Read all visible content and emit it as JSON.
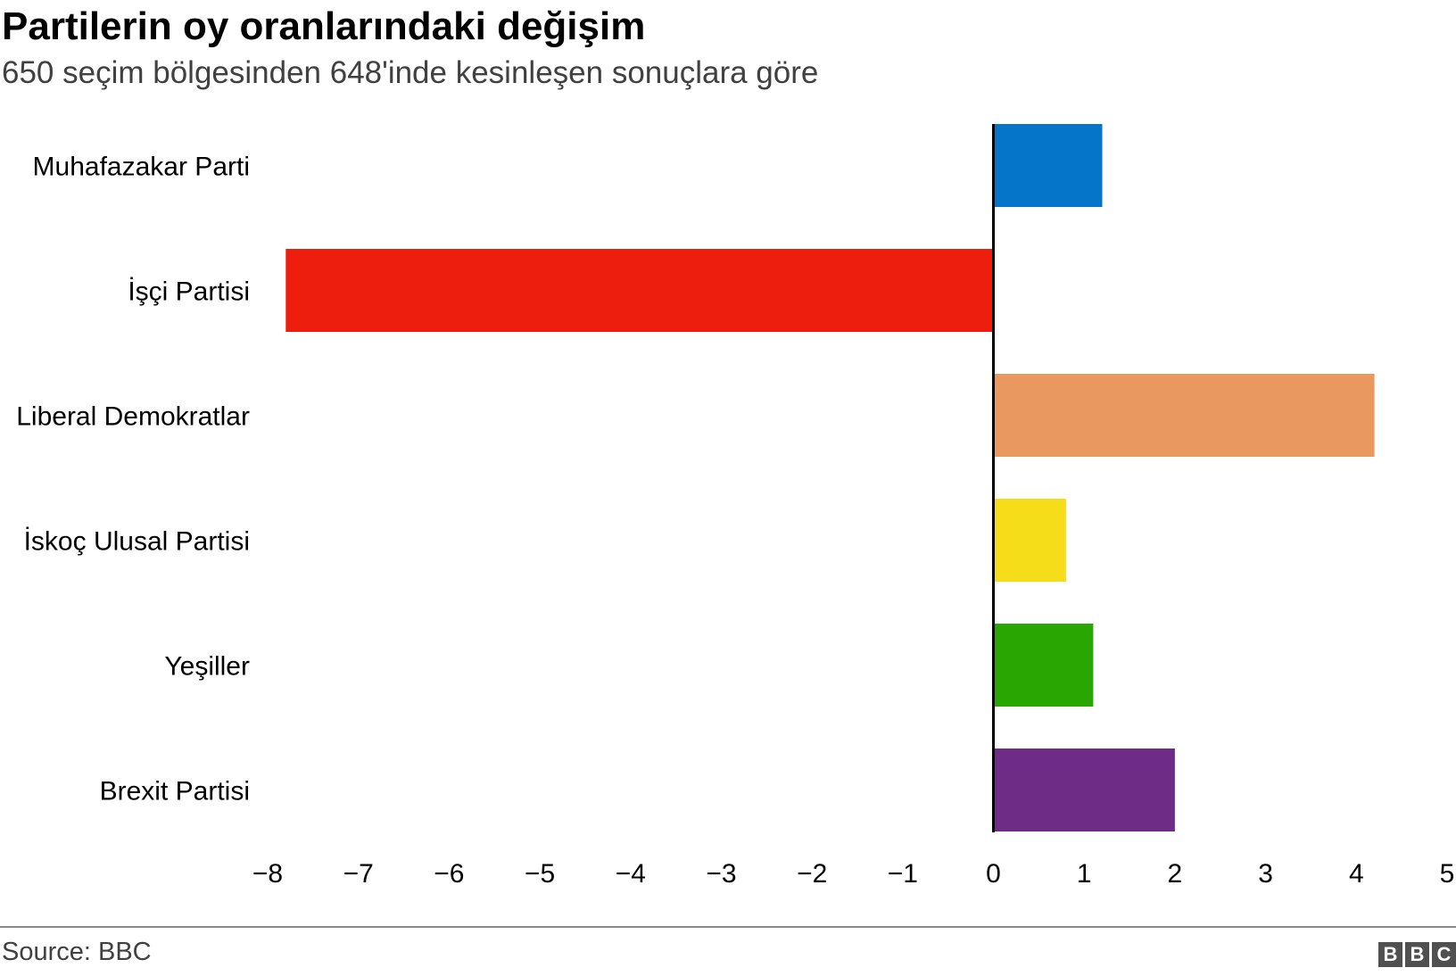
{
  "brand_logo": "BBC",
  "source": "Source: BBC",
  "chart_data": {
    "type": "bar",
    "orientation": "horizontal",
    "title": "Partilerin oy oranlarındaki değişim",
    "subtitle": "650 seçim bölgesinden 648'inde kesinleşen sonuçlara göre",
    "xlabel": "",
    "ylabel": "",
    "xlim": [
      -8,
      5
    ],
    "xticks": [
      -8,
      -7,
      -6,
      -5,
      -4,
      -3,
      -2,
      -1,
      0,
      1,
      2,
      3,
      4,
      5
    ],
    "xtick_labels": [
      "−8",
      "−7",
      "−6",
      "−5",
      "−4",
      "−3",
      "−2",
      "−1",
      "0",
      "1",
      "2",
      "3",
      "4",
      "5"
    ],
    "grid": false,
    "categories": [
      "Muhafazakar Parti",
      "İşçi Partisi",
      "Liberal Demokratlar",
      "İskoç Ulusal Partisi",
      "Yeşiller",
      "Brexit Partisi"
    ],
    "values": [
      1.2,
      -7.8,
      4.2,
      0.8,
      1.1,
      2.0
    ],
    "colors": [
      "#0575c9",
      "#ed1e0e",
      "#e9995f",
      "#f5dd1a",
      "#2aa602",
      "#6e2c86"
    ]
  }
}
